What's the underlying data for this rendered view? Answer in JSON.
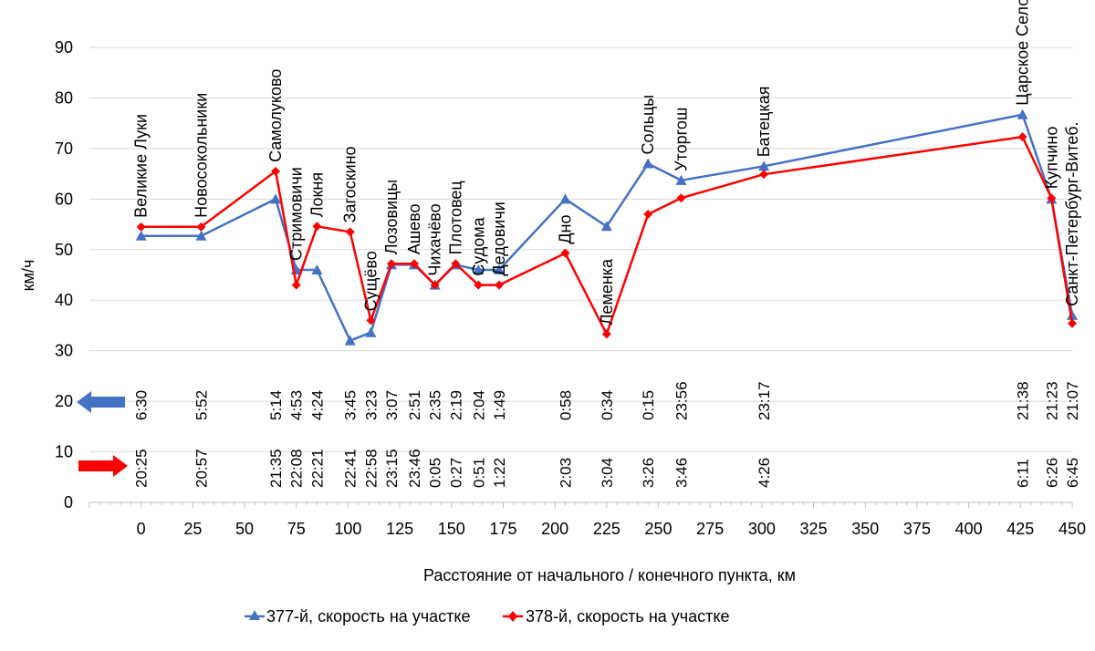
{
  "chart_data": {
    "type": "line",
    "xlabel": "Расстояние от начального / конечного пункта, км",
    "ylabel": "км/ч",
    "xlim": [
      -25,
      450
    ],
    "ylim": [
      0,
      90
    ],
    "x_ticks": [
      0,
      25,
      50,
      75,
      100,
      125,
      150,
      175,
      200,
      225,
      250,
      275,
      300,
      325,
      350,
      375,
      400,
      425,
      450
    ],
    "y_ticks": [
      0,
      10,
      20,
      30,
      40,
      50,
      60,
      70,
      80,
      90
    ],
    "grid": "horizontal",
    "legend": "bottom",
    "series": [
      {
        "name": "377-й, скорость на участке",
        "color": "#4472C4",
        "marker": "triangle",
        "direction_arrow": "left",
        "x": [
          0,
          29,
          65,
          75,
          85,
          101,
          111,
          121,
          132,
          142,
          152,
          163,
          173,
          205,
          225,
          245,
          261,
          301,
          426,
          440,
          450
        ],
        "values": [
          52.7,
          52.7,
          60.0,
          46.0,
          46.0,
          32.0,
          33.6,
          47.0,
          47.0,
          43.0,
          47.0,
          46.0,
          46.0,
          60.0,
          54.6,
          67.0,
          63.7,
          66.5,
          76.7,
          60.0,
          37.0
        ]
      },
      {
        "name": "378-й, скорость на участке",
        "color": "#FF0000",
        "marker": "diamond",
        "direction_arrow": "right",
        "x": [
          0,
          29,
          65,
          75,
          85,
          101,
          111,
          121,
          132,
          142,
          152,
          163,
          173,
          205,
          225,
          245,
          261,
          301,
          426,
          440,
          450
        ],
        "values": [
          54.5,
          54.5,
          65.5,
          43.0,
          54.6,
          53.5,
          36.0,
          47.2,
          47.2,
          43.0,
          47.2,
          43.0,
          43.0,
          49.3,
          33.3,
          57.0,
          60.2,
          64.9,
          72.3,
          60.2,
          35.4
        ]
      }
    ],
    "stations": [
      {
        "name": "Великие Луки",
        "x": 0,
        "label_y": 54.5,
        "time_377": "6:30",
        "time_378": "20:25"
      },
      {
        "name": "Новосокольники",
        "x": 29,
        "label_y": 54.5,
        "time_377": "5:52",
        "time_378": "20:57"
      },
      {
        "name": "Самолуково",
        "x": 65,
        "label_y": 65.5,
        "time_377": "5:14",
        "time_378": "21:35"
      },
      {
        "name": "Стримовичи",
        "x": 75,
        "label_y": 46.0,
        "time_377": "4:53",
        "time_378": "22:08"
      },
      {
        "name": "Локня",
        "x": 85,
        "label_y": 54.6,
        "time_377": "4:24",
        "time_378": "22:21"
      },
      {
        "name": "Загоскино",
        "x": 101,
        "label_y": 53.5,
        "time_377": "3:45",
        "time_378": "22:41"
      },
      {
        "name": "Сущёво",
        "x": 111,
        "label_y": 36.0,
        "time_377": "3:23",
        "time_378": "22:58"
      },
      {
        "name": "Лозовицы",
        "x": 121,
        "label_y": 47.2,
        "time_377": "3:07",
        "time_378": "23:15"
      },
      {
        "name": "Ашево",
        "x": 132,
        "label_y": 47.2,
        "time_377": "2:51",
        "time_378": "23:46"
      },
      {
        "name": "Чихачёво",
        "x": 142,
        "label_y": 43.0,
        "time_377": "2:35",
        "time_378": "0:05"
      },
      {
        "name": "Плотовец",
        "x": 152,
        "label_y": 47.2,
        "time_377": "2:19",
        "time_378": "0:27"
      },
      {
        "name": "Судома",
        "x": 163,
        "label_y": 43.0,
        "time_377": "2:04",
        "time_378": "0:51"
      },
      {
        "name": "Дедовичи",
        "x": 173,
        "label_y": 43.0,
        "time_377": "1:49",
        "time_378": "1:22"
      },
      {
        "name": "Дно",
        "x": 205,
        "label_y": 49.3,
        "time_377": "0:58",
        "time_378": "2:03"
      },
      {
        "name": "Леменка",
        "x": 225,
        "label_y": 33.3,
        "time_377": "0:34",
        "time_378": "3:04"
      },
      {
        "name": "Сольцы",
        "x": 245,
        "label_y": 67.0,
        "time_377": "0:15",
        "time_378": "3:26"
      },
      {
        "name": "Уторгош",
        "x": 261,
        "label_y": 63.7,
        "time_377": "23:56",
        "time_378": "3:46"
      },
      {
        "name": "Батецкая",
        "x": 301,
        "label_y": 66.5,
        "time_377": "23:17",
        "time_378": "4:26"
      },
      {
        "name": "Царское Село",
        "x": 426,
        "label_y": 76.7,
        "time_377": "21:38",
        "time_378": "6:11"
      },
      {
        "name": "Купчино",
        "x": 440,
        "label_y": 60.2,
        "time_377": "21:23",
        "time_378": "6:26"
      },
      {
        "name": "Санкт-Петербург-Витеб.",
        "x": 450,
        "label_y": 37.0,
        "time_377": "21:07",
        "time_378": "6:45"
      }
    ]
  }
}
